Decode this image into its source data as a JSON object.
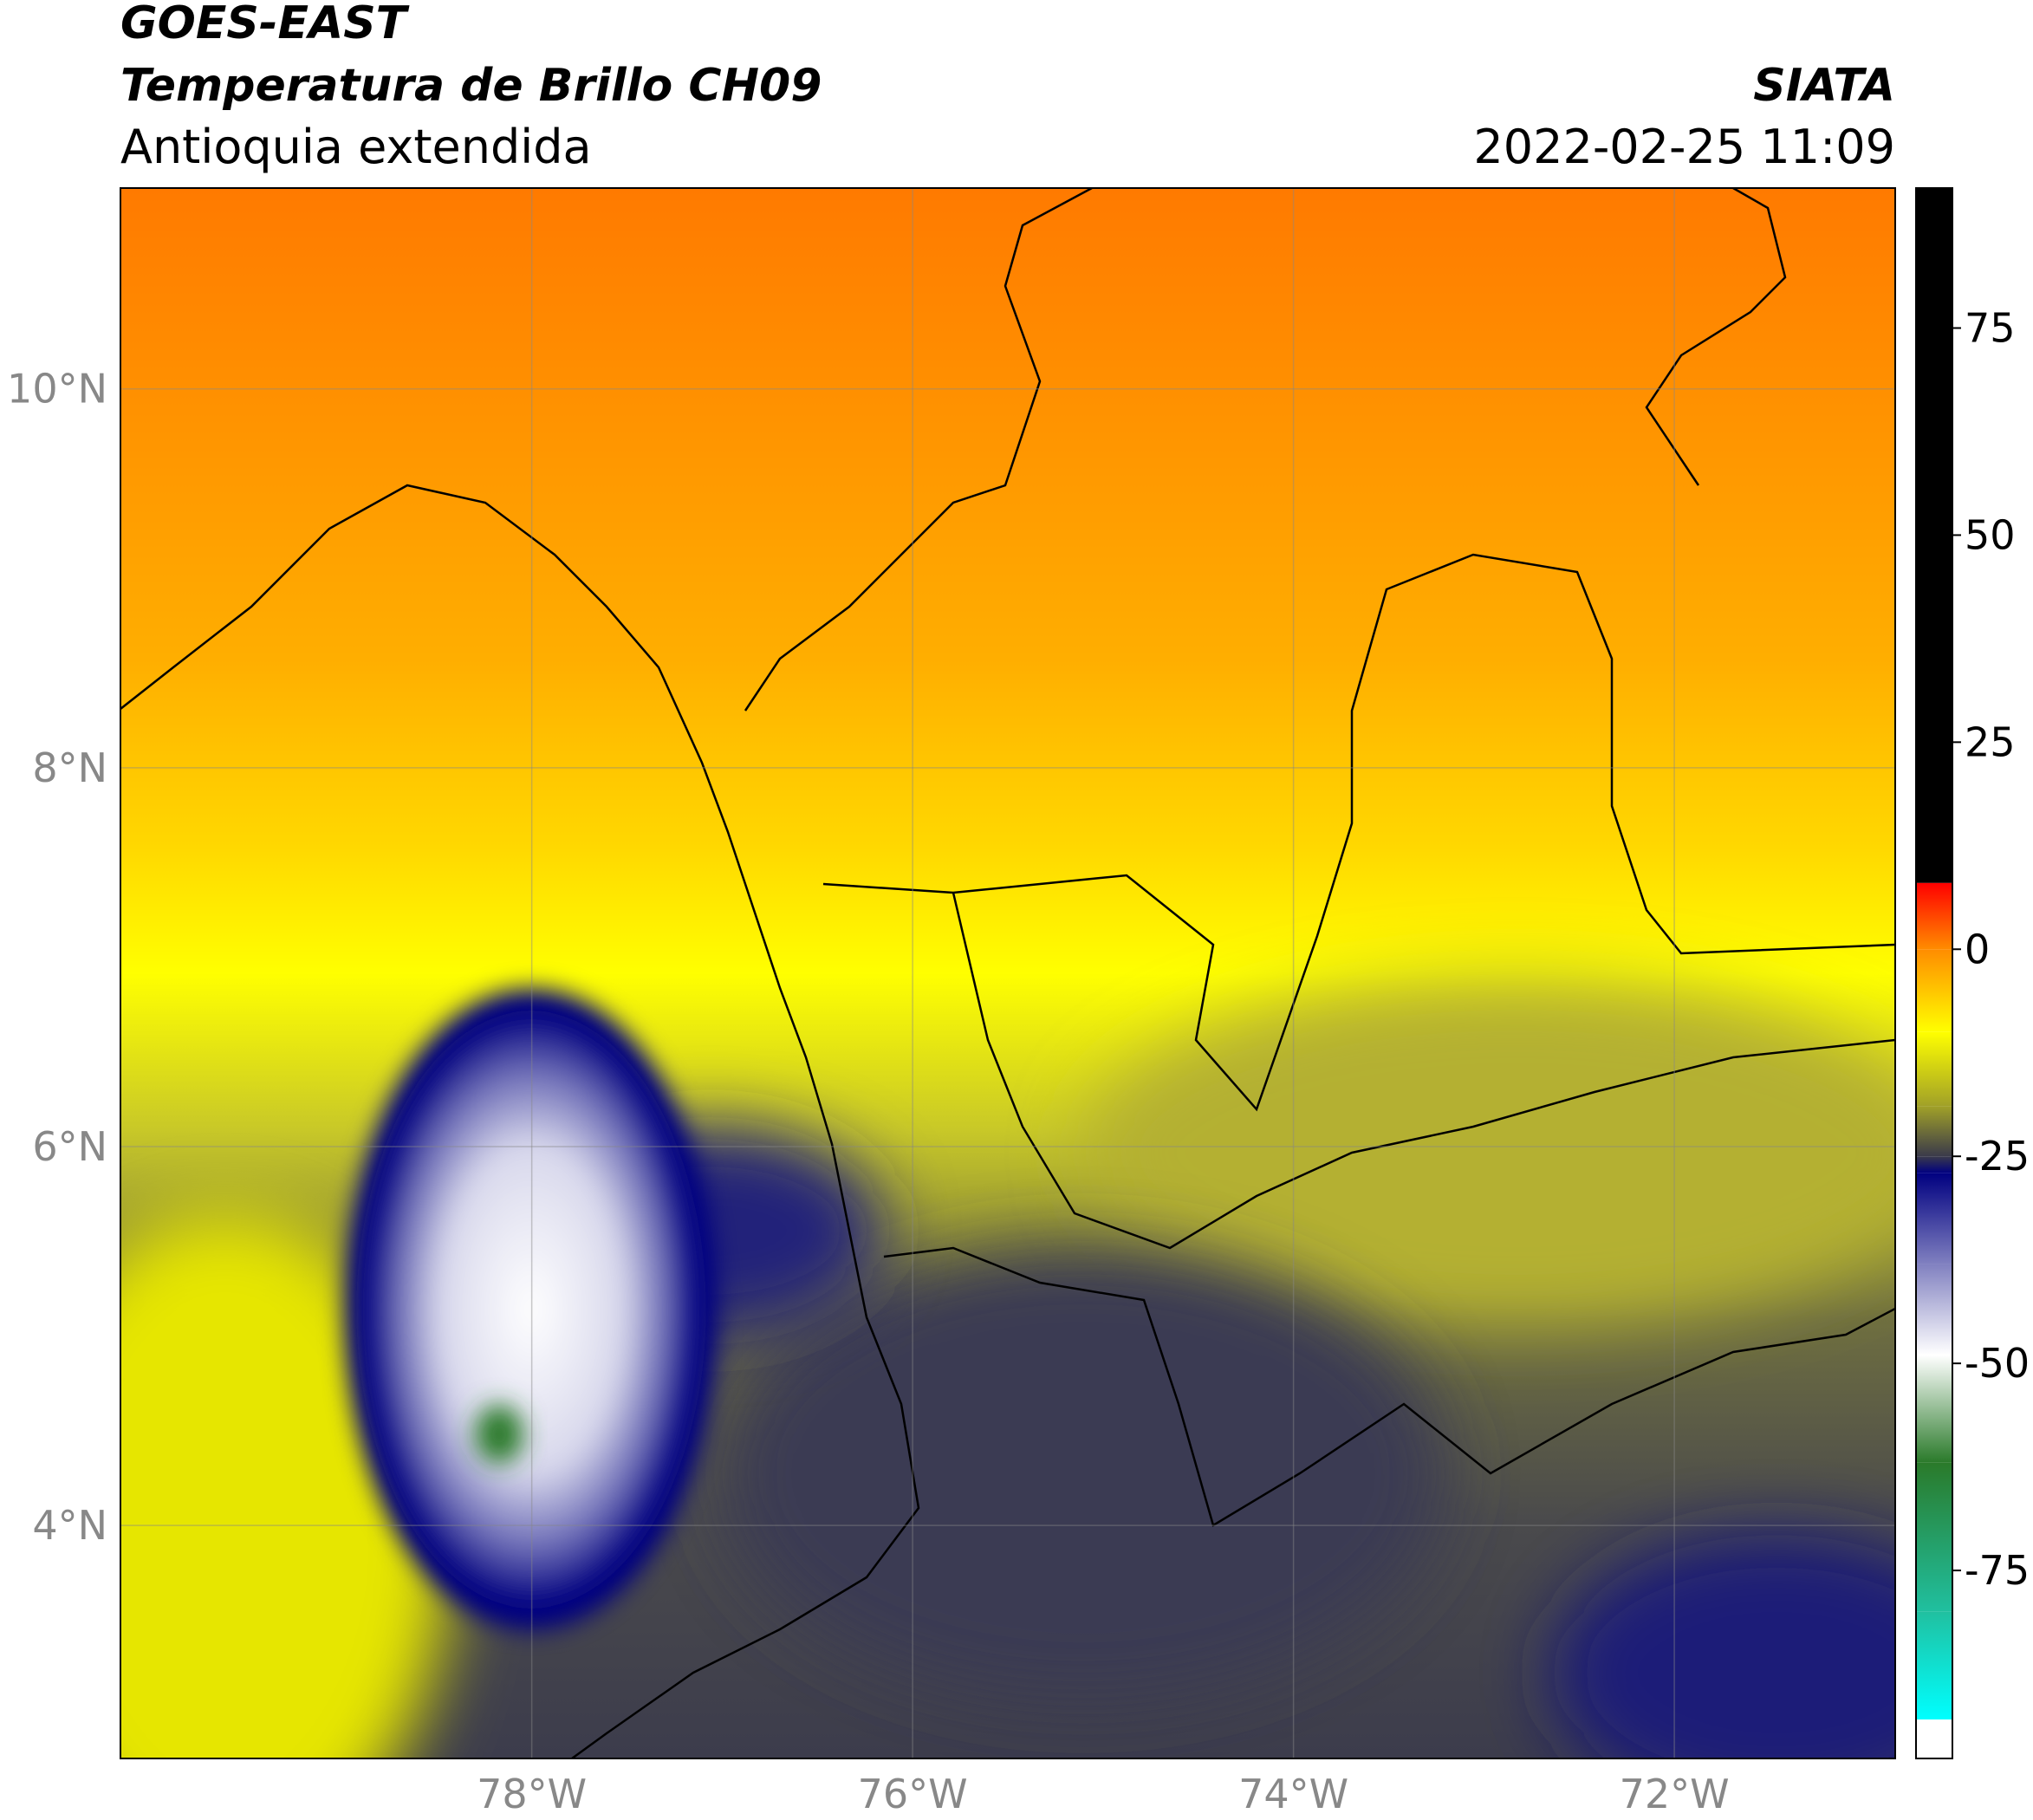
{
  "header": {
    "title": "GOES-EAST",
    "subtitle": "Temperatura de Brillo CH09",
    "region": "Antioquia extendida",
    "source": "SIATA",
    "timestamp": "2022-02-25 11:09"
  },
  "map": {
    "lon_range": [
      -80.16,
      -70.84
    ],
    "lat_range": [
      2.77,
      11.06
    ],
    "lon_ticks": [
      {
        "value": -78,
        "label": "78°W"
      },
      {
        "value": -76,
        "label": "76°W"
      },
      {
        "value": -74,
        "label": "74°W"
      },
      {
        "value": -72,
        "label": "72°W"
      }
    ],
    "lat_ticks": [
      {
        "value": 10,
        "label": "10°N"
      },
      {
        "value": 8,
        "label": "8°N"
      },
      {
        "value": 6,
        "label": "6°N"
      },
      {
        "value": 4,
        "label": "4°N"
      }
    ],
    "grid": true
  },
  "colorbar": {
    "range": [
      -97.7,
      91.9
    ],
    "ticks": [
      75,
      50,
      25,
      0,
      -25,
      -50,
      -75
    ],
    "stops": [
      {
        "value": 91.9,
        "color": "#000000"
      },
      {
        "value": 8,
        "color": "#000000"
      },
      {
        "value": 8,
        "color": "#ff0000"
      },
      {
        "value": 0,
        "color": "#ff8c00"
      },
      {
        "value": -10,
        "color": "#ffff00"
      },
      {
        "value": -19,
        "color": "#a0a028"
      },
      {
        "value": -25,
        "color": "#3a3a4a"
      },
      {
        "value": -27,
        "color": "#000080"
      },
      {
        "value": -38,
        "color": "#8080c0"
      },
      {
        "value": -49,
        "color": "#ffffff"
      },
      {
        "value": -62,
        "color": "#2a7a2a"
      },
      {
        "value": -80,
        "color": "#20c0a0"
      },
      {
        "value": -93,
        "color": "#00ffff"
      },
      {
        "value": -93,
        "color": "#ffffff"
      },
      {
        "value": -97.7,
        "color": "#ffffff"
      }
    ]
  }
}
